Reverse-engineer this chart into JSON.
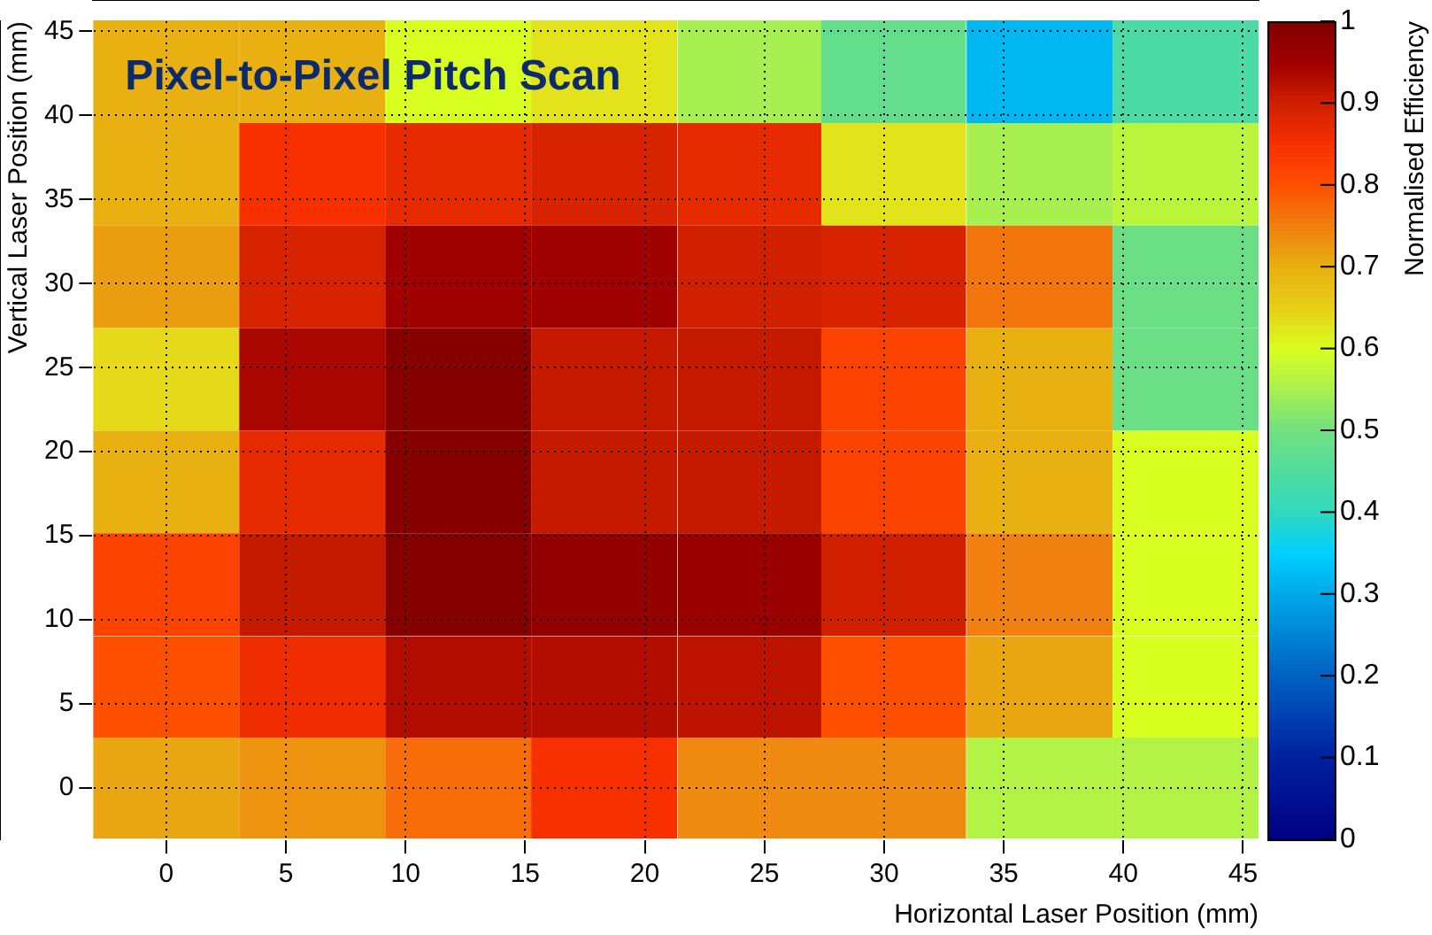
{
  "chart_data": {
    "type": "heatmap",
    "title": "Pixel-to-Pixel Pitch Scan",
    "xlabel": "Horizontal Laser Position (mm)",
    "ylabel": "Vertical Laser Position (mm)",
    "clabel": "Normalised Efficiency",
    "x": [
      0,
      6.1,
      12.2,
      18.3,
      24.4,
      30.4,
      36.5,
      42.6
    ],
    "y": [
      42.6,
      36.5,
      30.4,
      24.3,
      18.2,
      12.1,
      6,
      0
    ],
    "cells": [
      [
        0.7,
        0.7,
        0.6,
        0.63,
        0.55,
        0.48,
        0.32,
        0.44
      ],
      [
        0.7,
        0.85,
        0.87,
        0.89,
        0.87,
        0.63,
        0.55,
        0.57
      ],
      [
        0.72,
        0.89,
        0.95,
        0.95,
        0.9,
        0.89,
        0.76,
        0.49
      ],
      [
        0.64,
        0.94,
        0.99,
        0.91,
        0.91,
        0.82,
        0.7,
        0.49
      ],
      [
        0.7,
        0.87,
        0.99,
        0.91,
        0.91,
        0.82,
        0.7,
        0.6
      ],
      [
        0.82,
        0.91,
        0.99,
        0.97,
        0.96,
        0.9,
        0.75,
        0.6
      ],
      [
        0.8,
        0.86,
        0.93,
        0.93,
        0.92,
        0.8,
        0.71,
        0.6
      ],
      [
        0.71,
        0.73,
        0.77,
        0.85,
        0.74,
        0.74,
        0.56,
        0.56
      ]
    ],
    "xlim": [
      -3.05,
      45.65
    ],
    "xticks": [
      0,
      5,
      10,
      15,
      20,
      25,
      30,
      35,
      40,
      45
    ],
    "ylim": [
      -3.05,
      45.6
    ],
    "yticks": [
      0,
      5,
      10,
      15,
      20,
      25,
      30,
      35,
      40,
      45
    ],
    "clim": [
      0,
      1
    ],
    "cticks": [
      0,
      0.1,
      0.2,
      0.3,
      0.4,
      0.5,
      0.6,
      0.7,
      0.8,
      0.9,
      1
    ],
    "grid": true
  }
}
